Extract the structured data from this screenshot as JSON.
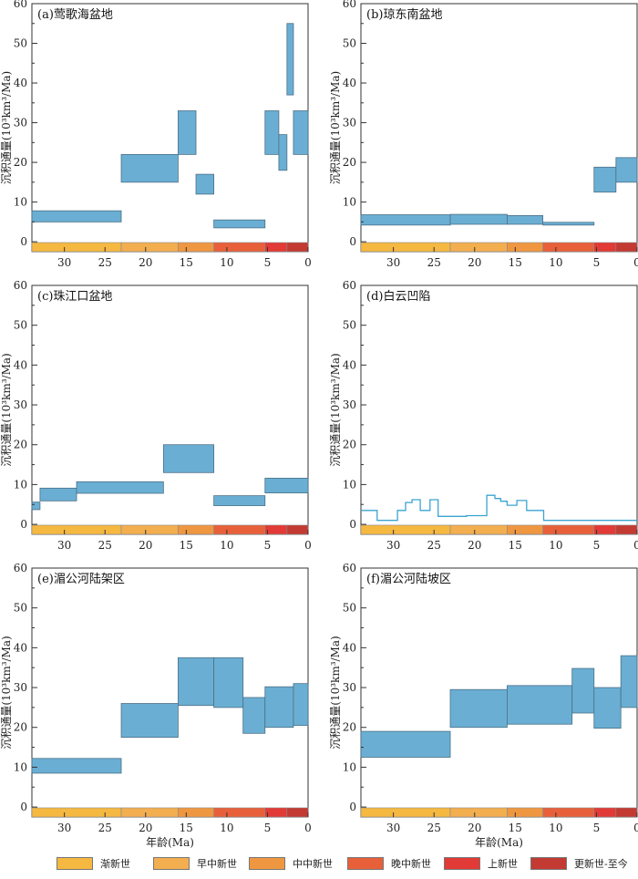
{
  "chart_data": [
    {
      "type": "rectangles",
      "title": "(a)莺歌海盆地",
      "ylabel": "沉积通量(10³km³/Ma)",
      "xlabel": "",
      "xlim": [
        34,
        0
      ],
      "ylim": [
        -2.5,
        60
      ],
      "grid": false,
      "bars": [
        {
          "x0": 34,
          "x1": 23,
          "y0": 5,
          "y1": 7.8
        },
        {
          "x0": 23,
          "x1": 16,
          "y0": 15,
          "y1": 22
        },
        {
          "x0": 16,
          "x1": 13.8,
          "y0": 22,
          "y1": 33
        },
        {
          "x0": 13.8,
          "x1": 11.6,
          "y0": 12,
          "y1": 17
        },
        {
          "x0": 11.6,
          "x1": 5.3,
          "y0": 3.5,
          "y1": 5.5
        },
        {
          "x0": 5.3,
          "x1": 3.6,
          "y0": 22,
          "y1": 33
        },
        {
          "x0": 3.6,
          "x1": 2.6,
          "y0": 18,
          "y1": 27
        },
        {
          "x0": 2.6,
          "x1": 1.8,
          "y0": 37,
          "y1": 55
        },
        {
          "x0": 1.8,
          "x1": 0,
          "y0": 22,
          "y1": 33
        }
      ]
    },
    {
      "type": "rectangles",
      "title": "(b)琼东南盆地",
      "ylabel": "沉积通量(10³km³/Ma)",
      "xlabel": "",
      "xlim": [
        34,
        0
      ],
      "ylim": [
        -2.5,
        60
      ],
      "grid": false,
      "bars": [
        {
          "x0": 34,
          "x1": 23,
          "y0": 4.2,
          "y1": 6.8
        },
        {
          "x0": 23,
          "x1": 16,
          "y0": 4.4,
          "y1": 6.9
        },
        {
          "x0": 16,
          "x1": 11.6,
          "y0": 4.4,
          "y1": 6.6
        },
        {
          "x0": 11.6,
          "x1": 5.3,
          "y0": 4.2,
          "y1": 4.9
        },
        {
          "x0": 5.3,
          "x1": 2.6,
          "y0": 12.5,
          "y1": 18.8
        },
        {
          "x0": 2.6,
          "x1": 0,
          "y0": 15,
          "y1": 21.2
        }
      ]
    },
    {
      "type": "rectangles",
      "title": "(c)珠江口盆地",
      "ylabel": "沉积通量(10³km³/Ma)",
      "xlabel": "",
      "xlim": [
        34,
        0
      ],
      "ylim": [
        -2.5,
        60
      ],
      "grid": false,
      "bars": [
        {
          "x0": 34,
          "x1": 33,
          "y0": 3.7,
          "y1": 5.6
        },
        {
          "x0": 33,
          "x1": 28.5,
          "y0": 5.9,
          "y1": 9.1
        },
        {
          "x0": 28.5,
          "x1": 17.8,
          "y0": 7.8,
          "y1": 10.7
        },
        {
          "x0": 17.8,
          "x1": 11.6,
          "y0": 13,
          "y1": 20
        },
        {
          "x0": 11.6,
          "x1": 5.3,
          "y0": 4.7,
          "y1": 7.2
        },
        {
          "x0": 5.3,
          "x1": 0,
          "y0": 7.9,
          "y1": 11.6
        }
      ]
    },
    {
      "type": "line",
      "title": "(d)白云凹陷",
      "ylabel": "沉积通量(10³km³/Ma)",
      "xlabel": "",
      "xlim": [
        34,
        0
      ],
      "ylim": [
        -2.5,
        60
      ],
      "grid": false,
      "x": [
        34,
        32,
        32,
        29.5,
        29.5,
        28.5,
        28.5,
        27.7,
        27.7,
        26.7,
        26.7,
        25.5,
        25.5,
        24.5,
        24.5,
        23.5,
        23.5,
        21,
        21,
        18.5,
        18.5,
        17.5,
        17.5,
        16.8,
        16.8,
        16,
        16,
        14.8,
        14.8,
        13.6,
        13.6,
        12.5,
        12.5,
        11.5,
        11.5,
        8.5,
        8.5,
        0
      ],
      "y": [
        3.5,
        3.5,
        1,
        1,
        3.5,
        3.5,
        5.5,
        5.5,
        6.2,
        6.2,
        3.5,
        3.5,
        6.2,
        6.2,
        2,
        2,
        2,
        2,
        2.2,
        2.2,
        7.3,
        7.3,
        6.5,
        6.5,
        5.8,
        5.8,
        4.8,
        4.8,
        6,
        6,
        3.5,
        3.5,
        3.5,
        3.5,
        1,
        1,
        1,
        1
      ]
    },
    {
      "type": "rectangles",
      "title": "(e)湄公河陆架区",
      "ylabel": "沉积通量(10³km³/Ma)",
      "xlabel": "年龄(Ma)",
      "xlim": [
        34,
        0
      ],
      "ylim": [
        -2.5,
        60
      ],
      "grid": false,
      "bars": [
        {
          "x0": 34,
          "x1": 23,
          "y0": 8.5,
          "y1": 12.2
        },
        {
          "x0": 23,
          "x1": 16,
          "y0": 17.5,
          "y1": 26
        },
        {
          "x0": 16,
          "x1": 11.6,
          "y0": 25.5,
          "y1": 37.5
        },
        {
          "x0": 11.6,
          "x1": 8,
          "y0": 25,
          "y1": 37.5
        },
        {
          "x0": 8,
          "x1": 5.3,
          "y0": 18.5,
          "y1": 27.5
        },
        {
          "x0": 5.3,
          "x1": 1.8,
          "y0": 20,
          "y1": 30.2
        },
        {
          "x0": 1.8,
          "x1": 0,
          "y0": 20.5,
          "y1": 31
        }
      ]
    },
    {
      "type": "rectangles",
      "title": "(f)湄公河陆坡区",
      "ylabel": "沉积通量(10³km³/Ma)",
      "xlabel": "年龄(Ma)",
      "xlim": [
        34,
        0
      ],
      "ylim": [
        -2.5,
        60
      ],
      "grid": false,
      "bars": [
        {
          "x0": 34,
          "x1": 23,
          "y0": 12.5,
          "y1": 19
        },
        {
          "x0": 23,
          "x1": 16,
          "y0": 20,
          "y1": 29.5
        },
        {
          "x0": 16,
          "x1": 8,
          "y0": 20.8,
          "y1": 30.5
        },
        {
          "x0": 8,
          "x1": 5.3,
          "y0": 23.6,
          "y1": 34.8
        },
        {
          "x0": 5.3,
          "x1": 2,
          "y0": 19.8,
          "y1": 30
        },
        {
          "x0": 2,
          "x1": 0,
          "y0": 25,
          "y1": 38
        }
      ]
    }
  ],
  "axis": {
    "yticks": [
      0,
      10,
      20,
      30,
      40,
      50,
      60
    ],
    "xticks": [
      30,
      25,
      20,
      15,
      10,
      5,
      0
    ],
    "yticks_minor": [
      5,
      15,
      25,
      35,
      45,
      55
    ]
  },
  "epochs": [
    {
      "label": "渐新世",
      "x0": 34,
      "x1": 23,
      "color": "#f5b840"
    },
    {
      "label": "早中新世",
      "x0": 23,
      "x1": 16,
      "color": "#f3ae4f"
    },
    {
      "label": "中中新世",
      "x0": 16,
      "x1": 11.6,
      "color": "#ef9740"
    },
    {
      "label": "晚中新世",
      "x0": 11.6,
      "x1": 5.3,
      "color": "#e8603a"
    },
    {
      "label": "上新世",
      "x0": 5.3,
      "x1": 2.6,
      "color": "#e23a36"
    },
    {
      "label": "更新世-至今",
      "x0": 2.6,
      "x1": 0,
      "color": "#c33a32"
    }
  ],
  "colors": {
    "fill": "#6aafd3",
    "stroke": "#4c6f86",
    "line": "#3ba4d1",
    "axis": "#333333"
  }
}
